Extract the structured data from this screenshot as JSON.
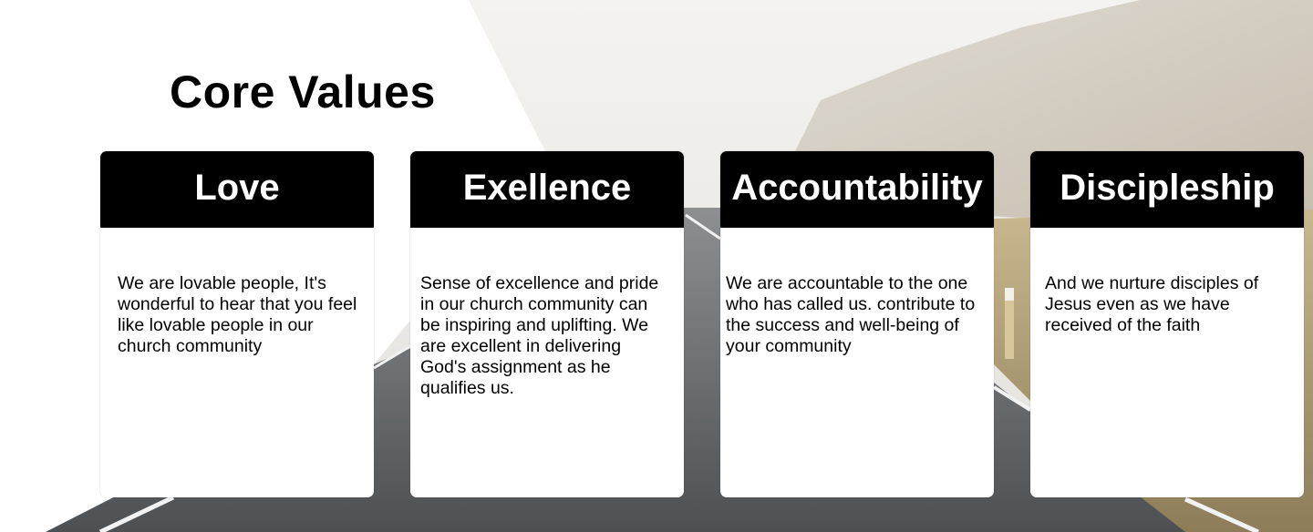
{
  "page": {
    "title": "Core Values"
  },
  "cards": [
    {
      "heading": "Love",
      "text": "We are lovable people, It's wonderful to hear that you feel like lovable people in our church community"
    },
    {
      "heading": "Exellence",
      "text": "Sense of excellence and pride in our church community can be inspiring and uplifting. We are excellent in delivering God's assignment as he qualifies us."
    },
    {
      "heading": "Accountability",
      "text": "We are accountable to the one who has called us. contribute to the success and well-being of your community"
    },
    {
      "heading": "Discipleship",
      "text": "And we nurture disciples of Jesus even as we have received of the faith"
    }
  ],
  "colors": {
    "card_header": "#000000",
    "card_body": "#ffffff",
    "road": "#5a5d60",
    "sky": "#ecebe8"
  }
}
